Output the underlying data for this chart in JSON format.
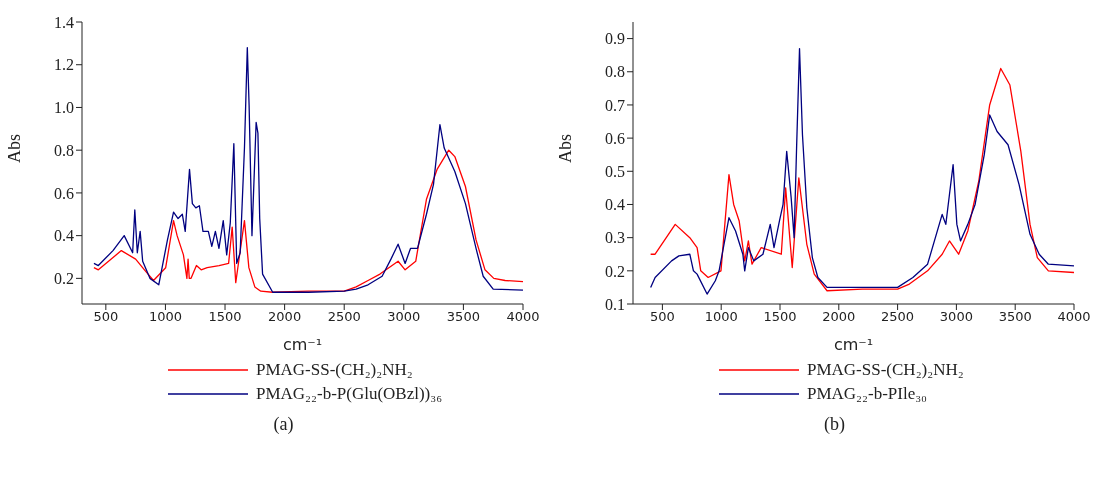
{
  "chart_data": [
    {
      "type": "line",
      "title": "(a)",
      "xlabel": "cm⁻¹",
      "ylabel": "Abs",
      "xlim": [
        300,
        4000
      ],
      "xticks": [
        500,
        1000,
        1500,
        2000,
        2500,
        3000,
        3500,
        4000
      ],
      "ylim": [
        0.08,
        1.4
      ],
      "yticks": [
        0.2,
        0.4,
        0.6,
        0.8,
        {
          "value": 1,
          "label": "1.0"
        },
        1.2,
        1.4
      ],
      "legend": "bottom",
      "marker": "none",
      "line_style": "solid",
      "series": [
        {
          "name": "PMAG-SS-(CH₂)₂NH₂",
          "color": "#ff0000",
          "x": [
            400,
            437,
            630,
            750,
            824,
            900,
            1002,
            1068,
            1098,
            1151,
            1180,
            1190,
            1200,
            1215,
            1260,
            1300,
            1350,
            1450,
            1530,
            1560,
            1590,
            1620,
            1663,
            1700,
            1750,
            1800,
            1900,
            2200,
            2500,
            2600,
            2700,
            2800,
            2952,
            3011,
            3100,
            3190,
            3279,
            3377,
            3428,
            3517,
            3606,
            3681,
            3755,
            3850,
            4000
          ],
          "values": [
            0.25,
            0.24,
            0.33,
            0.29,
            0.24,
            0.19,
            0.25,
            0.47,
            0.4,
            0.31,
            0.2,
            0.29,
            0.2,
            0.2,
            0.26,
            0.24,
            0.25,
            0.26,
            0.27,
            0.44,
            0.18,
            0.3,
            0.47,
            0.25,
            0.16,
            0.14,
            0.135,
            0.14,
            0.14,
            0.16,
            0.19,
            0.22,
            0.28,
            0.24,
            0.28,
            0.57,
            0.71,
            0.8,
            0.77,
            0.63,
            0.38,
            0.24,
            0.2,
            0.19,
            0.185
          ]
        },
        {
          "name": "PMAG₂₂-b-P(Glu(OBzl))₃₆",
          "color": "#000080",
          "x": [
            400,
            437,
            560,
            654,
            725,
            743,
            764,
            788,
            809,
            870,
            944,
            1017,
            1068,
            1106,
            1142,
            1166,
            1202,
            1226,
            1255,
            1285,
            1315,
            1360,
            1389,
            1419,
            1449,
            1485,
            1514,
            1544,
            1574,
            1598,
            1627,
            1663,
            1687,
            1702,
            1726,
            1761,
            1776,
            1791,
            1815,
            1900,
            2200,
            2500,
            2600,
            2700,
            2818,
            2892,
            2952,
            3011,
            3056,
            3115,
            3190,
            3249,
            3303,
            3339,
            3428,
            3517,
            3606,
            3666,
            3750,
            4000
          ],
          "values": [
            0.27,
            0.26,
            0.33,
            0.4,
            0.32,
            0.52,
            0.32,
            0.42,
            0.28,
            0.2,
            0.17,
            0.38,
            0.51,
            0.48,
            0.5,
            0.42,
            0.71,
            0.55,
            0.53,
            0.54,
            0.42,
            0.42,
            0.35,
            0.42,
            0.34,
            0.47,
            0.31,
            0.46,
            0.83,
            0.27,
            0.32,
            0.81,
            1.28,
            1.01,
            0.4,
            0.93,
            0.88,
            0.48,
            0.22,
            0.135,
            0.135,
            0.14,
            0.15,
            0.17,
            0.21,
            0.29,
            0.36,
            0.27,
            0.34,
            0.34,
            0.5,
            0.64,
            0.92,
            0.81,
            0.7,
            0.55,
            0.34,
            0.21,
            0.15,
            0.145
          ]
        }
      ]
    },
    {
      "type": "line",
      "title": "(b)",
      "xlabel": "cm⁻¹",
      "ylabel": "Abs",
      "xlim": [
        250,
        4000
      ],
      "xticks": [
        500,
        1000,
        1500,
        2000,
        2500,
        3000,
        3500,
        4000
      ],
      "ylim": [
        0.1,
        0.95
      ],
      "yticks": [
        0.1,
        0.2,
        0.3,
        0.4,
        0.5,
        0.6,
        0.7,
        0.8,
        0.9
      ],
      "legend": "bottom",
      "marker": "none",
      "line_style": "solid",
      "series": [
        {
          "name": "PMAG-SS-(CH₂)₂NH₂",
          "color": "#ff0000",
          "x": [
            400,
            438,
            609,
            733,
            795,
            826,
            889,
            998,
            1066,
            1106,
            1153,
            1200,
            1231,
            1262,
            1340,
            1511,
            1548,
            1604,
            1660,
            1728,
            1791,
            1900,
            2200,
            2500,
            2600,
            2755,
            2879,
            2941,
            3019,
            3097,
            3190,
            3283,
            3377,
            3455,
            3548,
            3626,
            3688,
            3782,
            4000
          ],
          "values": [
            0.25,
            0.25,
            0.34,
            0.3,
            0.27,
            0.2,
            0.18,
            0.2,
            0.49,
            0.4,
            0.35,
            0.23,
            0.29,
            0.22,
            0.27,
            0.25,
            0.45,
            0.21,
            0.48,
            0.28,
            0.19,
            0.14,
            0.145,
            0.145,
            0.16,
            0.2,
            0.25,
            0.29,
            0.25,
            0.32,
            0.47,
            0.7,
            0.81,
            0.76,
            0.56,
            0.34,
            0.24,
            0.2,
            0.195
          ]
        },
        {
          "name": "PMAG₂₂-b-PIle₃₀",
          "color": "#000080",
          "x": [
            400,
            438,
            578,
            640,
            733,
            764,
            795,
            880,
            950,
            982,
            1066,
            1122,
            1184,
            1200,
            1231,
            1277,
            1355,
            1417,
            1449,
            1495,
            1526,
            1557,
            1595,
            1620,
            1641,
            1666,
            1691,
            1728,
            1775,
            1822,
            1900,
            2200,
            2500,
            2630,
            2755,
            2879,
            2910,
            2941,
            2972,
            3004,
            3035,
            3097,
            3159,
            3237,
            3283,
            3346,
            3439,
            3533,
            3626,
            3704,
            3782,
            4000
          ],
          "values": [
            0.15,
            0.18,
            0.23,
            0.245,
            0.25,
            0.2,
            0.19,
            0.13,
            0.17,
            0.2,
            0.36,
            0.32,
            0.25,
            0.2,
            0.27,
            0.23,
            0.25,
            0.34,
            0.27,
            0.35,
            0.4,
            0.56,
            0.42,
            0.3,
            0.57,
            0.87,
            0.61,
            0.39,
            0.24,
            0.18,
            0.15,
            0.15,
            0.15,
            0.18,
            0.22,
            0.37,
            0.34,
            0.43,
            0.52,
            0.34,
            0.29,
            0.34,
            0.4,
            0.55,
            0.67,
            0.62,
            0.58,
            0.46,
            0.31,
            0.25,
            0.22,
            0.215
          ]
        }
      ]
    }
  ]
}
